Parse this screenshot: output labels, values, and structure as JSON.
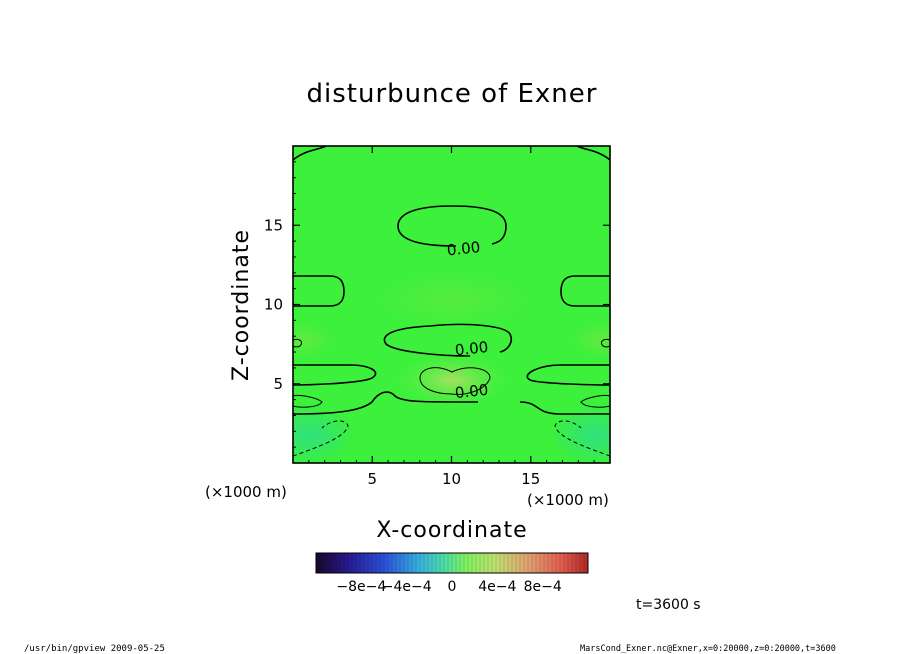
{
  "chart_data": {
    "type": "heatmap",
    "title": "disturbunce of Exner",
    "xlabel": "X-coordinate",
    "ylabel": "Z-coordinate",
    "x_unit": "(×1000 m)",
    "y_unit": "(×1000 m)",
    "xlim": [
      0,
      20
    ],
    "ylim": [
      0,
      20
    ],
    "x_ticks": [
      5,
      10,
      15
    ],
    "y_ticks": [
      5,
      10,
      15
    ],
    "x_tick_labels": [
      "5",
      "10",
      "15"
    ],
    "y_tick_labels": [
      "5",
      "10",
      "15"
    ],
    "contour_labels": [
      {
        "text": "0.00",
        "x": 10.8,
        "z": 13.2
      },
      {
        "text": "0.00",
        "x": 11.3,
        "z": 6.9
      },
      {
        "text": "0.00",
        "x": 11.3,
        "z": 4.2
      }
    ],
    "colorbar": {
      "range": [
        -0.0012,
        0.0012
      ],
      "tick_labels": [
        "−8e−4",
        "−4e−4",
        "0",
        "4e−4",
        "8e−4"
      ],
      "tick_values": [
        -0.0008,
        -0.0004,
        0,
        0.0004,
        0.0008
      ],
      "colors": [
        "#1a0a3a",
        "#2a1a8a",
        "#2040c0",
        "#30a0e0",
        "#40e0a0",
        "#80ff60",
        "#c0e070",
        "#e0a070",
        "#e06050",
        "#c03030"
      ]
    },
    "field_base_color": "#3cf03c"
  },
  "time_label": "t=3600 s",
  "footer": {
    "left": "/usr/bin/gpview   2009-05-25",
    "right": "MarsCond_Exner.nc@Exner,x=0:20000,z=0:20000,t=3600"
  }
}
